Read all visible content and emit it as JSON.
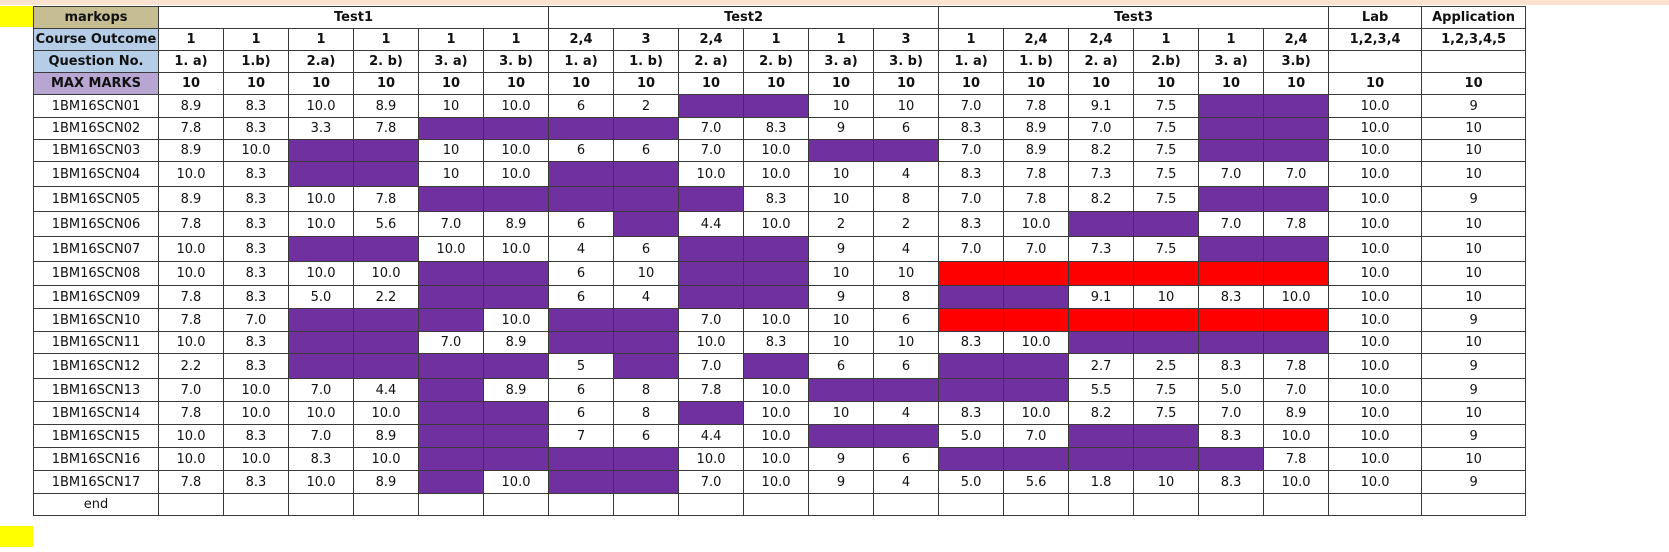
{
  "sheet": {
    "colors": {
      "absent": "#7030a0",
      "flagged": "#ff0000",
      "label_tan": "#c7bd93",
      "label_blue": "#b5cde6",
      "label_lavender": "#b7a6d1",
      "marker": "#ffff00"
    },
    "title_row": {
      "label": "markops",
      "groups": [
        {
          "text": "Test1",
          "span": 6
        },
        {
          "text": "Test2",
          "span": 6
        },
        {
          "text": "Test3",
          "span": 6
        },
        {
          "text": "Lab",
          "span": 1
        },
        {
          "text": "Application",
          "span": 1
        }
      ]
    },
    "outcome_row": {
      "label": "Course Outcome",
      "values": [
        "1",
        "1",
        "1",
        "1",
        "1",
        "1",
        "2,4",
        "3",
        "2,4",
        "1",
        "1",
        "3",
        "1",
        "2,4",
        "2,4",
        "1",
        "1",
        "2,4",
        "1,2,3,4",
        "1,2,3,4,5"
      ]
    },
    "question_row": {
      "label": "Question No.",
      "values": [
        "1. a)",
        "1.b)",
        "2.a)",
        "2. b)",
        "3. a)",
        "3. b)",
        "1. a)",
        "1. b)",
        "2. a)",
        "2. b)",
        "3. a)",
        "3. b)",
        "1. a)",
        "1. b)",
        "2. a)",
        "2.b)",
        "3. a)",
        "3.b)",
        "",
        ""
      ]
    },
    "max_row": {
      "label": "MAX MARKS",
      "values": [
        "10",
        "10",
        "10",
        "10",
        "10",
        "10",
        "10",
        "10",
        "10",
        "10",
        "10",
        "10",
        "10",
        "10",
        "10",
        "10",
        "10",
        "10",
        "10",
        "10"
      ]
    },
    "students": [
      {
        "usn": "1BM16SCN01",
        "marks": [
          "8.9",
          "8.3",
          "10.0",
          "8.9",
          "10",
          "10.0",
          "6",
          "2",
          "P",
          "P",
          "10",
          "10",
          "7.0",
          "7.8",
          "9.1",
          "7.5",
          "P",
          "P",
          "10.0",
          "9"
        ]
      },
      {
        "usn": "1BM16SCN02",
        "marks": [
          "7.8",
          "8.3",
          "3.3",
          "7.8",
          "P",
          "P",
          "P",
          "P",
          "7.0",
          "8.3",
          "9",
          "6",
          "8.3",
          "8.9",
          "7.0",
          "7.5",
          "P",
          "P",
          "10.0",
          "10"
        ]
      },
      {
        "usn": "1BM16SCN03",
        "marks": [
          "8.9",
          "10.0",
          "P",
          "P",
          "10",
          "10.0",
          "6",
          "6",
          "7.0",
          "10.0",
          "P",
          "P",
          "7.0",
          "8.9",
          "8.2",
          "7.5",
          "P",
          "P",
          "10.0",
          "10"
        ]
      },
      {
        "usn": "1BM16SCN04",
        "marks": [
          "10.0",
          "8.3",
          "P",
          "P",
          "10",
          "10.0",
          "P",
          "P",
          "10.0",
          "10.0",
          "10",
          "4",
          "8.3",
          "7.8",
          "7.3",
          "7.5",
          "7.0",
          "7.0",
          "10.0",
          "10"
        ]
      },
      {
        "usn": "1BM16SCN05",
        "marks": [
          "8.9",
          "8.3",
          "10.0",
          "7.8",
          "P",
          "P",
          "P",
          "P",
          "P",
          "8.3",
          "10",
          "8",
          "7.0",
          "7.8",
          "8.2",
          "7.5",
          "P",
          "P",
          "10.0",
          "9"
        ]
      },
      {
        "usn": "1BM16SCN06",
        "marks": [
          "7.8",
          "8.3",
          "10.0",
          "5.6",
          "7.0",
          "8.9",
          "6",
          "P",
          "4.4",
          "10.0",
          "2",
          "2",
          "8.3",
          "10.0",
          "P",
          "P",
          "7.0",
          "7.8",
          "10.0",
          "10"
        ]
      },
      {
        "usn": "1BM16SCN07",
        "marks": [
          "10.0",
          "8.3",
          "P",
          "P",
          "10.0",
          "10.0",
          "4",
          "6",
          "P",
          "P",
          "9",
          "4",
          "7.0",
          "7.0",
          "7.3",
          "7.5",
          "P",
          "P",
          "10.0",
          "10"
        ]
      },
      {
        "usn": "1BM16SCN08",
        "marks": [
          "10.0",
          "8.3",
          "10.0",
          "10.0",
          "P",
          "P",
          "6",
          "10",
          "P",
          "P",
          "10",
          "10",
          "R",
          "R",
          "R",
          "R",
          "R",
          "R",
          "10.0",
          "10"
        ]
      },
      {
        "usn": "1BM16SCN09",
        "marks": [
          "7.8",
          "8.3",
          "5.0",
          "2.2",
          "P",
          "P",
          "6",
          "4",
          "P",
          "P",
          "9",
          "8",
          "P",
          "P",
          "9.1",
          "10",
          "8.3",
          "10.0",
          "10.0",
          "10"
        ]
      },
      {
        "usn": "1BM16SCN10",
        "marks": [
          "7.8",
          "7.0",
          "P",
          "P",
          "P",
          "10.0",
          "P",
          "P",
          "7.0",
          "10.0",
          "10",
          "6",
          "R",
          "R",
          "R",
          "R",
          "R",
          "R",
          "10.0",
          "9"
        ]
      },
      {
        "usn": "1BM16SCN11",
        "marks": [
          "10.0",
          "8.3",
          "P",
          "P",
          "7.0",
          "8.9",
          "P",
          "P",
          "10.0",
          "8.3",
          "10",
          "10",
          "8.3",
          "10.0",
          "P",
          "P",
          "P",
          "P",
          "10.0",
          "10"
        ]
      },
      {
        "usn": "1BM16SCN12",
        "marks": [
          "2.2",
          "8.3",
          "P",
          "P",
          "P",
          "P",
          "5",
          "P",
          "7.0",
          "P",
          "6",
          "6",
          "P",
          "P",
          "2.7",
          "2.5",
          "8.3",
          "7.8",
          "10.0",
          "9"
        ]
      },
      {
        "usn": "1BM16SCN13",
        "marks": [
          "7.0",
          "10.0",
          "7.0",
          "4.4",
          "P",
          "8.9",
          "6",
          "8",
          "7.8",
          "10.0",
          "P",
          "P",
          "P",
          "P",
          "5.5",
          "7.5",
          "5.0",
          "7.0",
          "10.0",
          "9"
        ]
      },
      {
        "usn": "1BM16SCN14",
        "marks": [
          "7.8",
          "10.0",
          "10.0",
          "10.0",
          "P",
          "P",
          "6",
          "8",
          "P",
          "10.0",
          "10",
          "4",
          "8.3",
          "10.0",
          "8.2",
          "7.5",
          "7.0",
          "8.9",
          "10.0",
          "10"
        ]
      },
      {
        "usn": "1BM16SCN15",
        "marks": [
          "10.0",
          "8.3",
          "7.0",
          "8.9",
          "P",
          "P",
          "7",
          "6",
          "4.4",
          "10.0",
          "P",
          "P",
          "5.0",
          "7.0",
          "P",
          "P",
          "8.3",
          "10.0",
          "10.0",
          "9"
        ]
      },
      {
        "usn": "1BM16SCN16",
        "marks": [
          "10.0",
          "10.0",
          "8.3",
          "10.0",
          "P",
          "P",
          "P",
          "P",
          "10.0",
          "10.0",
          "9",
          "6",
          "P",
          "P",
          "P",
          "P",
          "P",
          "7.8",
          "10.0",
          "10"
        ]
      },
      {
        "usn": "1BM16SCN17",
        "marks": [
          "7.8",
          "8.3",
          "10.0",
          "8.9",
          "P",
          "10.0",
          "P",
          "P",
          "7.0",
          "10.0",
          "9",
          "4",
          "5.0",
          "5.6",
          "1.8",
          "10",
          "8.3",
          "10.0",
          "10.0",
          "9"
        ]
      }
    ],
    "end_row": {
      "label": "end"
    }
  }
}
